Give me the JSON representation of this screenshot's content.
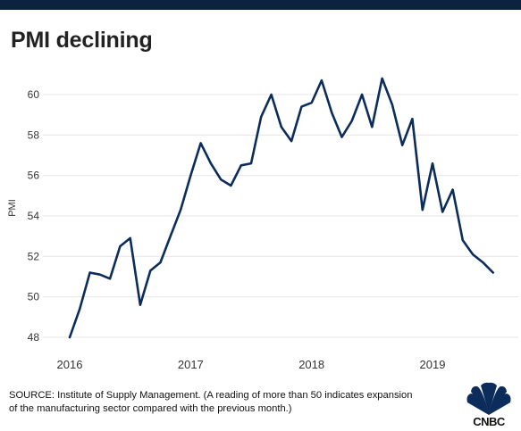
{
  "header": {
    "title": "PMI declining"
  },
  "footer": {
    "source_line1": "SOURCE: Institute of Supply Management. (A reading of more than 50 indicates expansion",
    "source_line2": "of the manufacturing sector compared with the previous month.)",
    "logo_text": "CNBC"
  },
  "colors": {
    "line": "#0c2d5c",
    "top_bar": "#0c2340",
    "grid": "#e6e6e6"
  },
  "chart_data": {
    "type": "line",
    "title": "PMI declining",
    "xlabel": "",
    "ylabel": "PMI",
    "ylim": [
      47.5,
      61
    ],
    "yticks": [
      48,
      50,
      52,
      54,
      56,
      58,
      60
    ],
    "xticks": [
      {
        "label": "2016",
        "value": 2016.0
      },
      {
        "label": "2017",
        "value": 2017.0
      },
      {
        "label": "2018",
        "value": 2018.0
      },
      {
        "label": "2019",
        "value": 2019.0
      }
    ],
    "grid": true,
    "series": [
      {
        "values": [
          [
            2016.0,
            48.0
          ],
          [
            2016.083,
            49.4
          ],
          [
            2016.167,
            51.2
          ],
          [
            2016.25,
            51.1
          ],
          [
            2016.333,
            50.9
          ],
          [
            2016.417,
            52.5
          ],
          [
            2016.5,
            52.9
          ],
          [
            2016.583,
            49.6
          ],
          [
            2016.667,
            51.3
          ],
          [
            2016.75,
            51.7
          ],
          [
            2016.833,
            53.0
          ],
          [
            2016.917,
            54.3
          ],
          [
            2017.0,
            56.0
          ],
          [
            2017.083,
            57.6
          ],
          [
            2017.167,
            56.6
          ],
          [
            2017.25,
            55.8
          ],
          [
            2017.333,
            55.5
          ],
          [
            2017.417,
            56.5
          ],
          [
            2017.5,
            56.6
          ],
          [
            2017.583,
            58.9
          ],
          [
            2017.667,
            60.0
          ],
          [
            2017.75,
            58.4
          ],
          [
            2017.833,
            57.7
          ],
          [
            2017.917,
            59.4
          ],
          [
            2018.0,
            59.6
          ],
          [
            2018.083,
            60.7
          ],
          [
            2018.167,
            59.1
          ],
          [
            2018.25,
            57.9
          ],
          [
            2018.333,
            58.7
          ],
          [
            2018.417,
            60.0
          ],
          [
            2018.5,
            58.4
          ],
          [
            2018.583,
            60.8
          ],
          [
            2018.667,
            59.5
          ],
          [
            2018.75,
            57.5
          ],
          [
            2018.833,
            58.8
          ],
          [
            2018.917,
            54.3
          ],
          [
            2019.0,
            56.6
          ],
          [
            2019.083,
            54.2
          ],
          [
            2019.167,
            55.3
          ],
          [
            2019.25,
            52.8
          ],
          [
            2019.333,
            52.1
          ],
          [
            2019.417,
            51.7
          ],
          [
            2019.5,
            51.2
          ]
        ]
      }
    ]
  }
}
